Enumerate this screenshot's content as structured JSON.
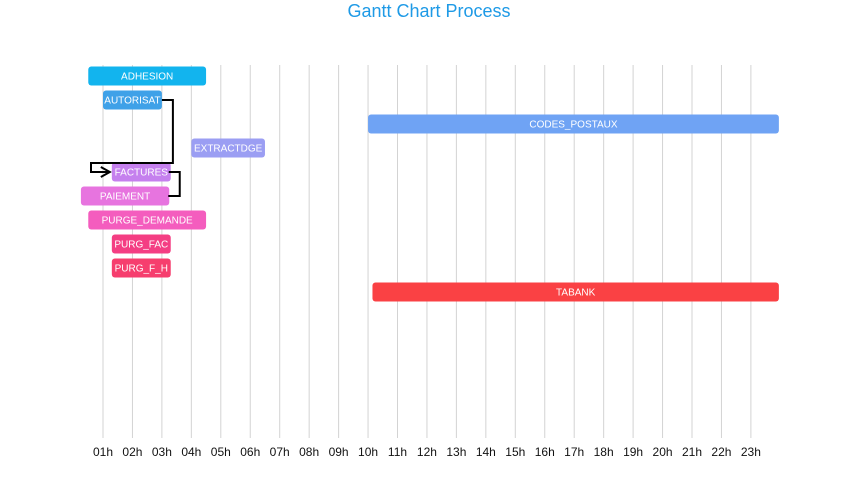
{
  "chart_data": {
    "type": "gantt",
    "title": "Gantt Chart Process",
    "x_ticks": [
      "01h",
      "02h",
      "03h",
      "04h",
      "05h",
      "06h",
      "07h",
      "08h",
      "09h",
      "10h",
      "11h",
      "12h",
      "13h",
      "14h",
      "15h",
      "16h",
      "17h",
      "18h",
      "19h",
      "20h",
      "21h",
      "22h",
      "23h"
    ],
    "x_range": [
      0.5,
      24.0
    ],
    "grid": true,
    "tasks": [
      {
        "name": "ADHESION",
        "start": 0.5,
        "end": 4.5,
        "color": "#12b4ee"
      },
      {
        "name": "AUTORISAT",
        "start": 1.0,
        "end": 3.0,
        "color": "#3fa1e8"
      },
      {
        "name": "CODES_POSTAUX",
        "start": 10.0,
        "end": 23.95,
        "color": "#6fa3f4"
      },
      {
        "name": "EXTRACTDGE",
        "start": 4.0,
        "end": 6.5,
        "color": "#9b9ef3"
      },
      {
        "name": "FACTURES",
        "start": 1.3,
        "end": 3.3,
        "color": "#c580ee"
      },
      {
        "name": "PAIEMENT",
        "start": 0.25,
        "end": 3.25,
        "color": "#e774df"
      },
      {
        "name": "PURGE_DEMANDE",
        "start": 0.5,
        "end": 4.5,
        "color": "#f45dbe"
      },
      {
        "name": "PURG_FAC",
        "start": 1.3,
        "end": 3.3,
        "color": "#f43e83"
      },
      {
        "name": "PURG_F_H",
        "start": 1.3,
        "end": 3.3,
        "color": "#f63e6e"
      },
      {
        "name": "TABANK",
        "start": 10.15,
        "end": 23.95,
        "color": "#fa4144"
      }
    ],
    "dependencies": [
      {
        "from": "AUTORISAT",
        "to": "FACTURES"
      },
      {
        "from": "PAIEMENT",
        "to": "FACTURES"
      }
    ]
  }
}
